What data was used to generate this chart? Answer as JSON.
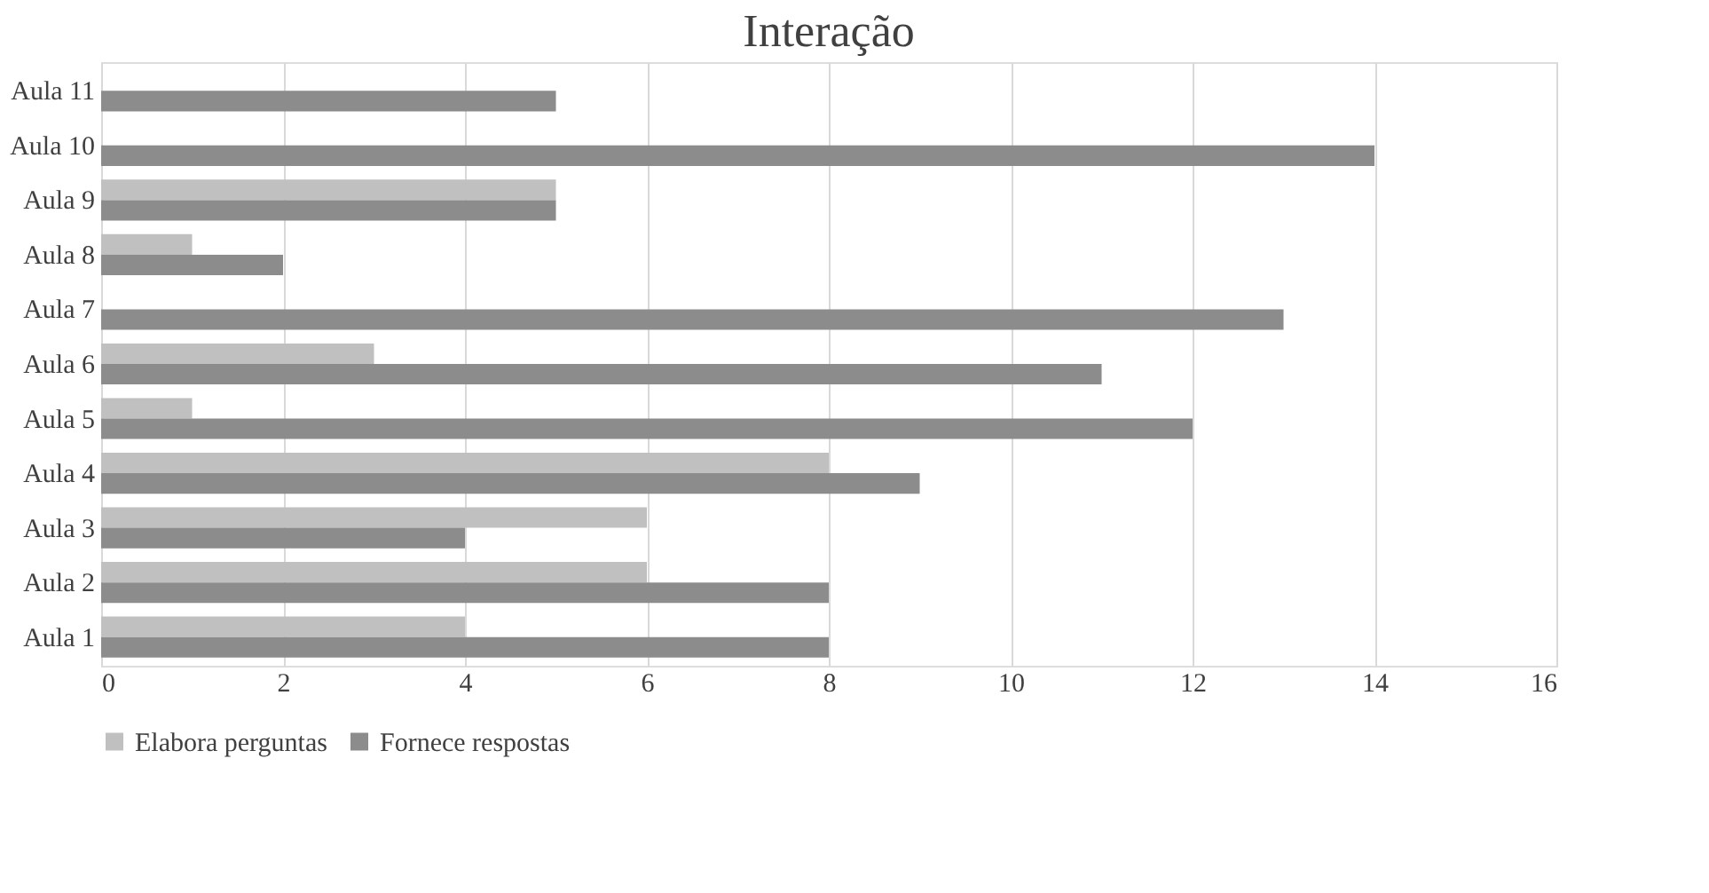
{
  "chart_data": {
    "type": "bar",
    "orientation": "horizontal",
    "title": "Interação",
    "categories": [
      "Aula 11",
      "Aula 10",
      "Aula 9",
      "Aula 8",
      "Aula 7",
      "Aula 6",
      "Aula 5",
      "Aula 4",
      "Aula 3",
      "Aula 2",
      "Aula 1"
    ],
    "series": [
      {
        "name": "Elabora perguntas",
        "color": "#c0c0c0",
        "values": [
          0,
          0,
          5,
          1,
          0,
          3,
          1,
          8,
          6,
          6,
          4
        ]
      },
      {
        "name": "Fornece respostas",
        "color": "#8c8c8c",
        "values": [
          5,
          14,
          5,
          2,
          13,
          11,
          12,
          9,
          4,
          8,
          8
        ]
      }
    ],
    "xlim": [
      0,
      16
    ],
    "xticks": [
      0,
      2,
      4,
      6,
      8,
      10,
      12,
      14,
      16
    ],
    "grid": "x",
    "legend": "bottom"
  }
}
